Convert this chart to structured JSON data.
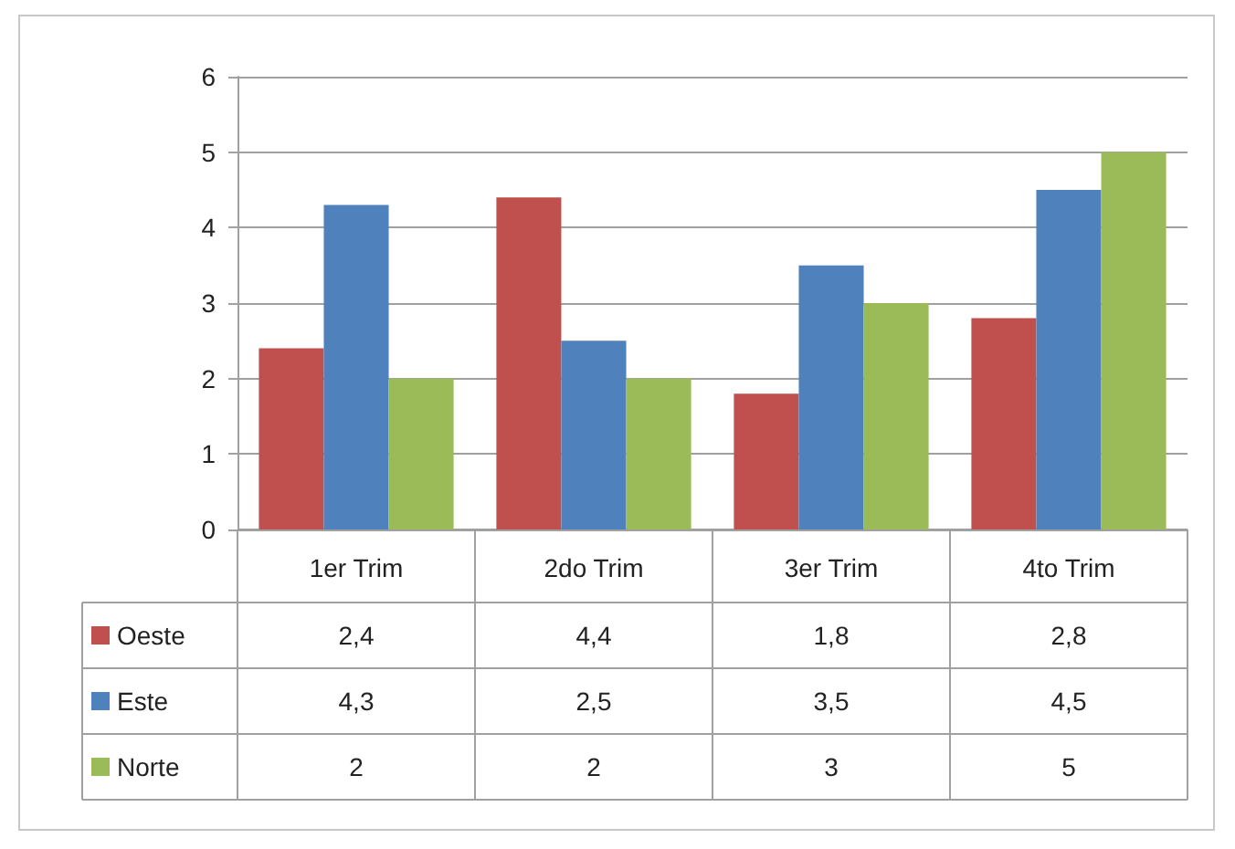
{
  "chart_data": {
    "type": "bar",
    "categories": [
      "1er Trim",
      "2do Trim",
      "3er Trim",
      "4to Trim"
    ],
    "series": [
      {
        "name": "Oeste",
        "color": "#c0504d",
        "values": [
          2.4,
          4.4,
          1.8,
          2.8
        ],
        "value_labels": [
          "2,4",
          "4,4",
          "1,8",
          "2,8"
        ]
      },
      {
        "name": "Este",
        "color": "#4f81bd",
        "values": [
          4.3,
          2.5,
          3.5,
          4.5
        ],
        "value_labels": [
          "4,3",
          "2,5",
          "3,5",
          "4,5"
        ]
      },
      {
        "name": "Norte",
        "color": "#9bbb59",
        "values": [
          2,
          2,
          3,
          5
        ],
        "value_labels": [
          "2",
          "2",
          "3",
          "5"
        ]
      }
    ],
    "ylim": [
      0,
      6
    ],
    "yticks": [
      0,
      1,
      2,
      3,
      4,
      5,
      6
    ],
    "grid": "y",
    "legend": "bottom left"
  }
}
